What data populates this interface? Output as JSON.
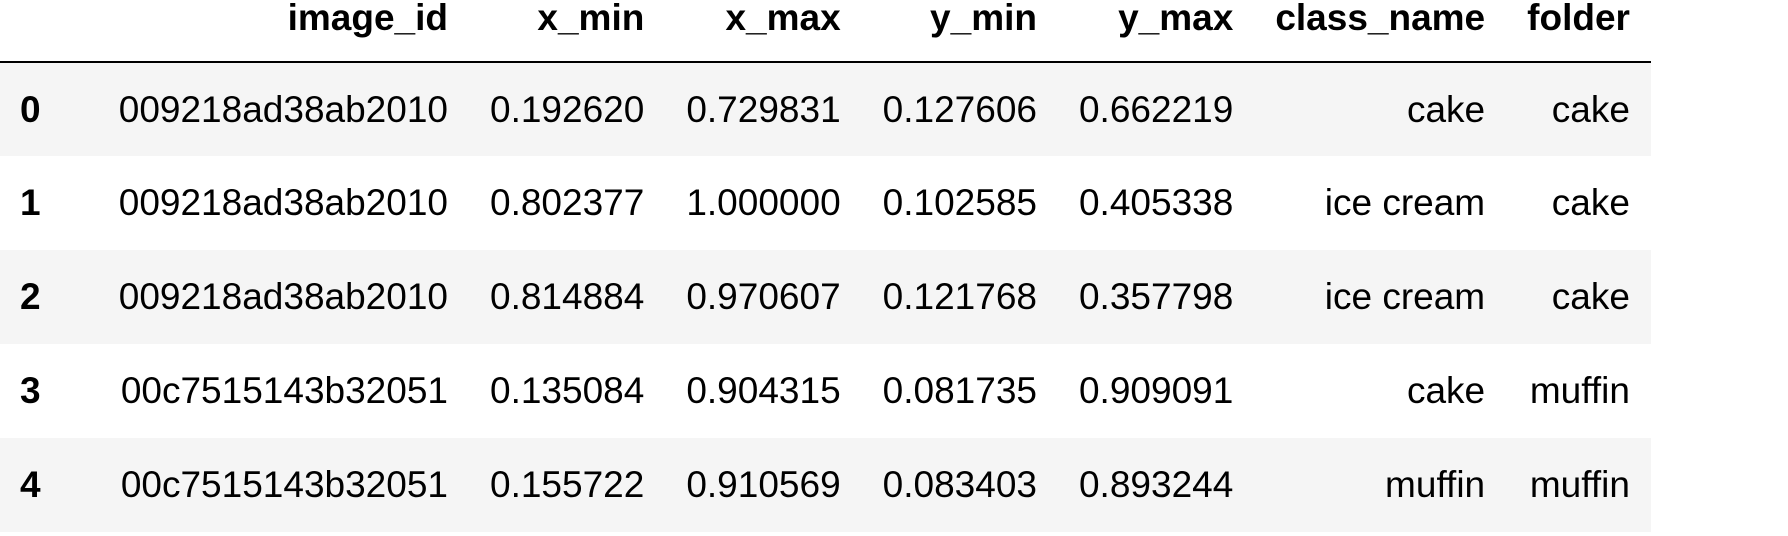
{
  "table": {
    "columns": [
      "",
      "image_id",
      "x_min",
      "x_max",
      "y_min",
      "y_max",
      "class_name",
      "folder"
    ],
    "rows": [
      {
        "index": "0",
        "image_id": "009218ad38ab2010",
        "x_min": "0.192620",
        "x_max": "0.729831",
        "y_min": "0.127606",
        "y_max": "0.662219",
        "class_name": "cake",
        "folder": "cake"
      },
      {
        "index": "1",
        "image_id": "009218ad38ab2010",
        "x_min": "0.802377",
        "x_max": "1.000000",
        "y_min": "0.102585",
        "y_max": "0.405338",
        "class_name": "ice cream",
        "folder": "cake"
      },
      {
        "index": "2",
        "image_id": "009218ad38ab2010",
        "x_min": "0.814884",
        "x_max": "0.970607",
        "y_min": "0.121768",
        "y_max": "0.357798",
        "class_name": "ice cream",
        "folder": "cake"
      },
      {
        "index": "3",
        "image_id": "00c7515143b32051",
        "x_min": "0.135084",
        "x_max": "0.904315",
        "y_min": "0.081735",
        "y_max": "0.909091",
        "class_name": "cake",
        "folder": "muffin"
      },
      {
        "index": "4",
        "image_id": "00c7515143b32051",
        "x_min": "0.155722",
        "x_max": "0.910569",
        "y_min": "0.083403",
        "y_max": "0.893244",
        "class_name": "muffin",
        "folder": "muffin"
      }
    ]
  }
}
